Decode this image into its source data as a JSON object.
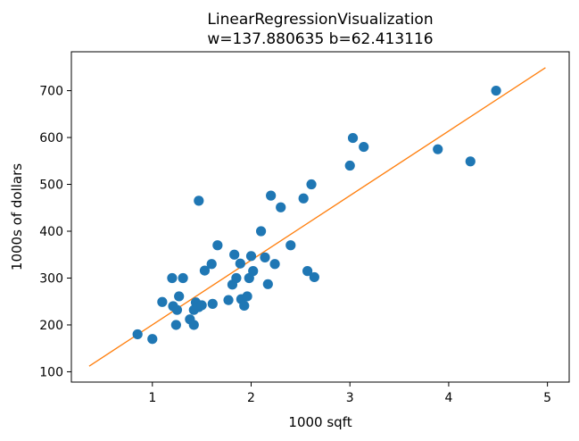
{
  "chart_data": {
    "type": "scatter",
    "title": "LinearRegressionVisualization",
    "subtitle": "w=137.880635 b=62.413116",
    "xlabel": "1000 sqft",
    "ylabel": "1000s of dollars",
    "xlim": [
      0.18,
      5.22
    ],
    "ylim": [
      78,
      783
    ],
    "xticks": [
      1,
      2,
      3,
      4,
      5
    ],
    "yticks": [
      100,
      200,
      300,
      400,
      500,
      600,
      700
    ],
    "grid": false,
    "colors": {
      "points": "#1f77b4",
      "line": "#ff7f0e"
    },
    "line": {
      "x": [
        0.36,
        4.98
      ],
      "y": [
        112,
        749
      ]
    },
    "points": [
      [
        0.85,
        180
      ],
      [
        1.0,
        170
      ],
      [
        1.1,
        249
      ],
      [
        1.2,
        300
      ],
      [
        1.21,
        240
      ],
      [
        1.24,
        200
      ],
      [
        1.25,
        232
      ],
      [
        1.27,
        261
      ],
      [
        1.31,
        300
      ],
      [
        1.38,
        212
      ],
      [
        1.42,
        232
      ],
      [
        1.42,
        200
      ],
      [
        1.44,
        248
      ],
      [
        1.47,
        238
      ],
      [
        1.47,
        465
      ],
      [
        1.5,
        242
      ],
      [
        1.53,
        316
      ],
      [
        1.6,
        330
      ],
      [
        1.61,
        245
      ],
      [
        1.66,
        370
      ],
      [
        1.77,
        253
      ],
      [
        1.81,
        286
      ],
      [
        1.83,
        350
      ],
      [
        1.85,
        300
      ],
      [
        1.89,
        331
      ],
      [
        1.9,
        255
      ],
      [
        1.93,
        241
      ],
      [
        1.96,
        261
      ],
      [
        1.98,
        300
      ],
      [
        2.0,
        347
      ],
      [
        2.02,
        315
      ],
      [
        2.1,
        400
      ],
      [
        2.14,
        344
      ],
      [
        2.17,
        287
      ],
      [
        2.2,
        476
      ],
      [
        2.24,
        330
      ],
      [
        2.3,
        451
      ],
      [
        2.4,
        370
      ],
      [
        2.53,
        470
      ],
      [
        2.57,
        315
      ],
      [
        2.61,
        500
      ],
      [
        2.64,
        302
      ],
      [
        3.0,
        540
      ],
      [
        3.03,
        599
      ],
      [
        3.14,
        580
      ],
      [
        3.89,
        575
      ],
      [
        4.22,
        549
      ],
      [
        4.48,
        700
      ]
    ]
  }
}
